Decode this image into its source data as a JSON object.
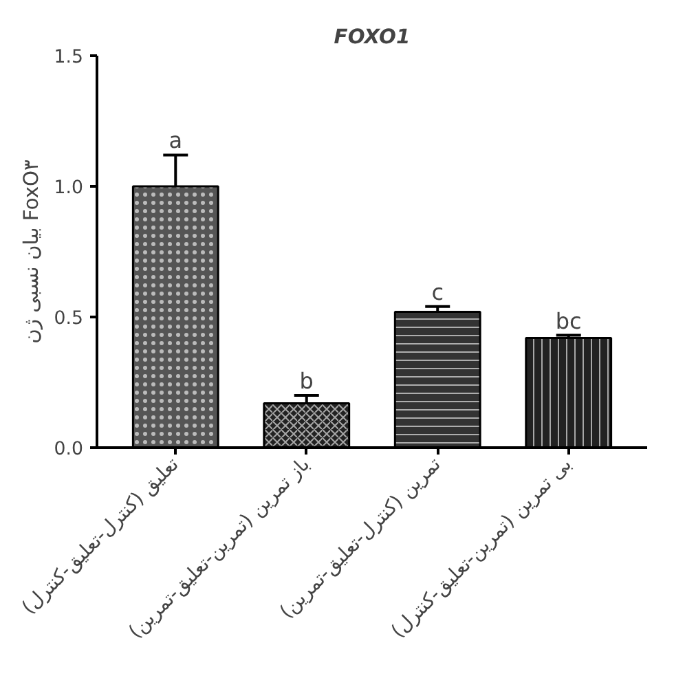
{
  "chart_data": {
    "type": "bar",
    "title": "FOXO1",
    "ylabel": "بیان نسبی ژن FoxO۳",
    "categories": [
      "تعلیق (کنترل-تعلیق-کنترل)",
      "باز تمرین (تمرین-تعلیق-تمرین)",
      "تمرین (کنترل-تعلیق-تمرین)",
      "بی تمرین (تمرین-تعلیق-کنترل)"
    ],
    "values": [
      1.0,
      0.17,
      0.52,
      0.42
    ],
    "errors": [
      0.12,
      0.03,
      0.02,
      0.01
    ],
    "colors": [
      "#555555",
      "#222222",
      "#333333",
      "#222222"
    ],
    "ylim": [
      0,
      1.5
    ],
    "yticks": [
      {
        "value": 0,
        "label": "0.0"
      },
      {
        "value": 0.5,
        "label": "0.5"
      },
      {
        "value": 1,
        "label": "1.0"
      },
      {
        "value": 1.5,
        "label": "1.5"
      }
    ],
    "grid": false,
    "annotations": [
      {
        "text": "a",
        "x": "تعلیق (کنترل-تعلیق-کنترل)",
        "y": 1.12
      },
      {
        "text": "b",
        "x": "باز تمرین (تمرین-تعلیق-تمرین)",
        "y": 0.2
      },
      {
        "text": "c",
        "x": "تمرین (کنترل-تعلیق-تمرین)",
        "y": 0.54
      },
      {
        "text": "bc",
        "x": "بی تمرین (تمرین-تعلیق-کنترل)",
        "y": 0.43
      }
    ]
  }
}
